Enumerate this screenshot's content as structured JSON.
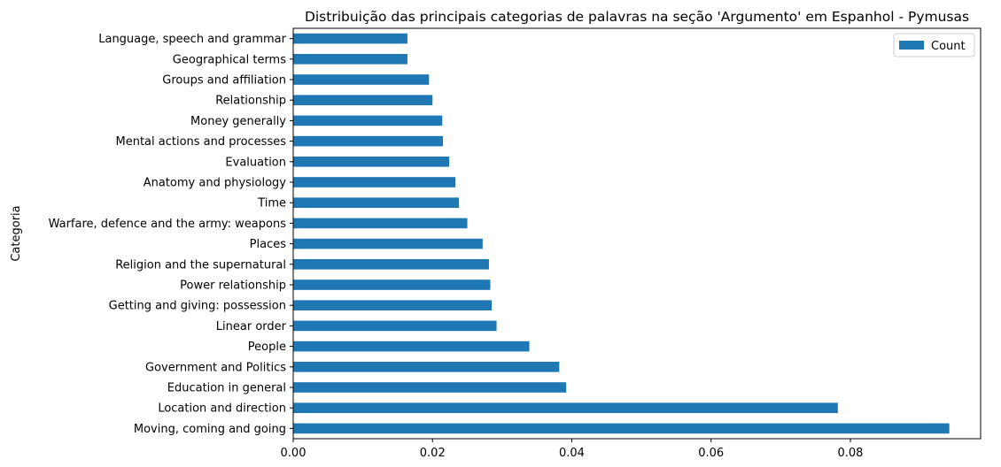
{
  "chart_data": {
    "type": "bar",
    "orientation": "horizontal",
    "title": "Distribuição das principais categorias de palavras na seção 'Argumento' em Espanhol - Pymusas",
    "xlabel": "",
    "ylabel": "Categoria",
    "xlim": [
      0,
      0.0987
    ],
    "xticks": [
      "0.00",
      "0.02",
      "0.04",
      "0.06",
      "0.08"
    ],
    "xtick_values": [
      0,
      0.02,
      0.04,
      0.06,
      0.08
    ],
    "categories": [
      "Moving, coming and going",
      "Location and direction",
      "Education in general",
      "Government and Politics ",
      "People",
      "Linear order",
      "Getting and giving: possession",
      "Power relationship",
      "Religion and the supernatural",
      "Places",
      "Warfare, defence and the army: weapons",
      "Time",
      "Anatomy and physiology",
      "Evaluation",
      "Mental actions and processes",
      "Money generally",
      "Relationship",
      "Groups and affiliation",
      "Geographical terms",
      "Language, speech and grammar"
    ],
    "series": [
      {
        "name": "Count",
        "color": "#1f77b4",
        "values": [
          0.0942,
          0.0782,
          0.0392,
          0.0382,
          0.0339,
          0.0292,
          0.0285,
          0.0283,
          0.0281,
          0.0272,
          0.025,
          0.0238,
          0.0233,
          0.0224,
          0.0215,
          0.0214,
          0.02,
          0.0195,
          0.0164,
          0.0164
        ]
      }
    ],
    "legend_position": "top-right",
    "grid": false
  }
}
